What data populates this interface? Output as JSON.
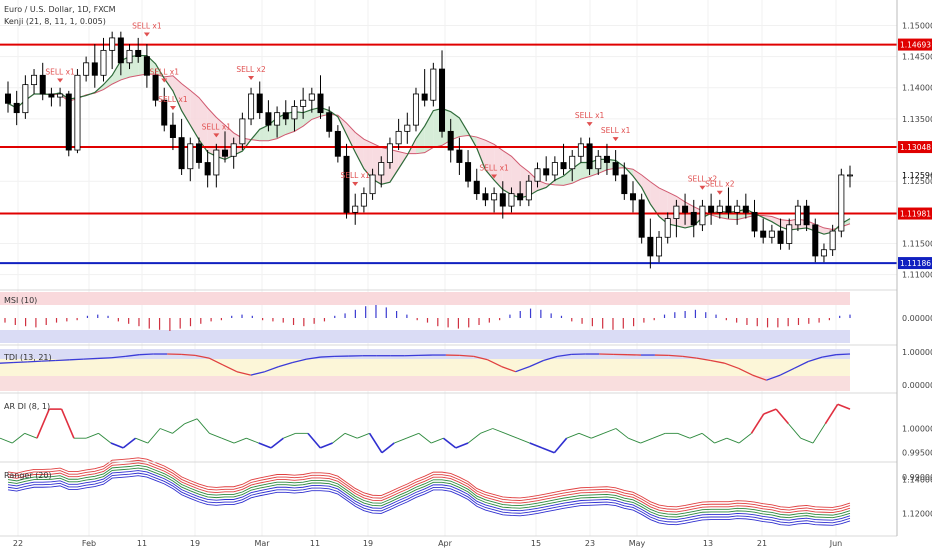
{
  "header": {
    "title": "Euro / U.S. Dollar, 1D, FXCM",
    "indicator": "Kenji (21, 8, 11, 1, 0.005)"
  },
  "panes": {
    "msi": {
      "title": "MSI (10)",
      "ticks": [
        "0.00000"
      ]
    },
    "tdi": {
      "title": "TDI (13, 21)",
      "ticks": [
        "1.00000",
        "0.00000"
      ]
    },
    "ardi": {
      "title": "AR DI (8, 1)",
      "ticks": [
        "1.00000",
        "0.99500",
        "0.99000"
      ]
    },
    "ranger": {
      "title": "Ranger (20)",
      "ticks": [
        "1.14000",
        "1.12000"
      ]
    }
  },
  "price_axis": {
    "ticks": [
      "1.15000",
      "1.14500",
      "1.14000",
      "1.13500",
      "1.12500",
      "1.11500",
      "1.11000"
    ]
  },
  "x_axis": {
    "labels": [
      "22",
      "Feb",
      "11",
      "19",
      "Mar",
      "11",
      "19",
      "Apr",
      "15",
      "23",
      "May",
      "13",
      "21",
      "Jun"
    ]
  },
  "levels": [
    {
      "value": "1.14693",
      "color": "#e00000"
    },
    {
      "value": "1.13048",
      "color": "#e00000"
    },
    {
      "value": "1.11981",
      "color": "#e00000"
    },
    {
      "value": "1.11186",
      "color": "#1020c0"
    }
  ],
  "last_price": {
    "value": "1.12596"
  },
  "sell_labels": [
    "SELL x1",
    "SELL x1",
    "SELL x1",
    "SELL x1",
    "SELL x2",
    "SELL x1",
    "SELL x1",
    "SELL x1",
    "SELL x1",
    "SELL x1",
    "SELL x2",
    "SELL x2"
  ],
  "chart_data": {
    "type": "candlestick",
    "title": "Euro / U.S. Dollar, 1D, FXCM",
    "ylim": [
      1.1085,
      1.1528
    ],
    "candles_ohlc": [
      [
        1.139,
        1.141,
        1.136,
        1.1375
      ],
      [
        1.1375,
        1.1395,
        1.134,
        1.136
      ],
      [
        1.136,
        1.142,
        1.135,
        1.1405
      ],
      [
        1.1405,
        1.143,
        1.139,
        1.142
      ],
      [
        1.142,
        1.144,
        1.138,
        1.139
      ],
      [
        1.139,
        1.14,
        1.137,
        1.1385
      ],
      [
        1.1385,
        1.14,
        1.137,
        1.139
      ],
      [
        1.139,
        1.1395,
        1.129,
        1.13
      ],
      [
        1.13,
        1.143,
        1.1295,
        1.142
      ],
      [
        1.142,
        1.145,
        1.141,
        1.144
      ],
      [
        1.144,
        1.147,
        1.14,
        1.142
      ],
      [
        1.142,
        1.148,
        1.141,
        1.146
      ],
      [
        1.146,
        1.149,
        1.143,
        1.148
      ],
      [
        1.148,
        1.149,
        1.142,
        1.144
      ],
      [
        1.144,
        1.147,
        1.143,
        1.146
      ],
      [
        1.146,
        1.148,
        1.144,
        1.145
      ],
      [
        1.145,
        1.147,
        1.14,
        1.142
      ],
      [
        1.142,
        1.143,
        1.137,
        1.138
      ],
      [
        1.138,
        1.14,
        1.133,
        1.134
      ],
      [
        1.134,
        1.136,
        1.13,
        1.132
      ],
      [
        1.132,
        1.135,
        1.126,
        1.127
      ],
      [
        1.127,
        1.132,
        1.125,
        1.131
      ],
      [
        1.131,
        1.132,
        1.127,
        1.128
      ],
      [
        1.128,
        1.13,
        1.124,
        1.126
      ],
      [
        1.126,
        1.131,
        1.124,
        1.13
      ],
      [
        1.13,
        1.133,
        1.128,
        1.129
      ],
      [
        1.129,
        1.132,
        1.127,
        1.131
      ],
      [
        1.131,
        1.136,
        1.13,
        1.135
      ],
      [
        1.135,
        1.14,
        1.134,
        1.139
      ],
      [
        1.139,
        1.141,
        1.135,
        1.136
      ],
      [
        1.136,
        1.138,
        1.133,
        1.134
      ],
      [
        1.134,
        1.137,
        1.132,
        1.136
      ],
      [
        1.136,
        1.138,
        1.134,
        1.135
      ],
      [
        1.135,
        1.138,
        1.133,
        1.137
      ],
      [
        1.137,
        1.14,
        1.135,
        1.138
      ],
      [
        1.138,
        1.14,
        1.136,
        1.139
      ],
      [
        1.139,
        1.142,
        1.135,
        1.136
      ],
      [
        1.136,
        1.137,
        1.132,
        1.133
      ],
      [
        1.133,
        1.134,
        1.128,
        1.129
      ],
      [
        1.129,
        1.131,
        1.119,
        1.12
      ],
      [
        1.12,
        1.123,
        1.118,
        1.121
      ],
      [
        1.121,
        1.124,
        1.12,
        1.123
      ],
      [
        1.123,
        1.127,
        1.122,
        1.126
      ],
      [
        1.126,
        1.129,
        1.124,
        1.128
      ],
      [
        1.128,
        1.132,
        1.127,
        1.131
      ],
      [
        1.131,
        1.135,
        1.13,
        1.133
      ],
      [
        1.133,
        1.136,
        1.131,
        1.134
      ],
      [
        1.134,
        1.14,
        1.133,
        1.139
      ],
      [
        1.139,
        1.143,
        1.137,
        1.138
      ],
      [
        1.138,
        1.144,
        1.137,
        1.143
      ],
      [
        1.143,
        1.146,
        1.132,
        1.133
      ],
      [
        1.133,
        1.135,
        1.128,
        1.13
      ],
      [
        1.13,
        1.132,
        1.126,
        1.128
      ],
      [
        1.128,
        1.13,
        1.124,
        1.125
      ],
      [
        1.125,
        1.127,
        1.122,
        1.123
      ],
      [
        1.123,
        1.124,
        1.121,
        1.122
      ],
      [
        1.122,
        1.124,
        1.12,
        1.123
      ],
      [
        1.123,
        1.125,
        1.119,
        1.121
      ],
      [
        1.121,
        1.124,
        1.12,
        1.123
      ],
      [
        1.123,
        1.125,
        1.121,
        1.122
      ],
      [
        1.122,
        1.126,
        1.121,
        1.125
      ],
      [
        1.125,
        1.128,
        1.124,
        1.127
      ],
      [
        1.127,
        1.129,
        1.125,
        1.126
      ],
      [
        1.126,
        1.129,
        1.125,
        1.128
      ],
      [
        1.128,
        1.131,
        1.126,
        1.127
      ],
      [
        1.127,
        1.13,
        1.125,
        1.129
      ],
      [
        1.129,
        1.132,
        1.128,
        1.131
      ],
      [
        1.131,
        1.132,
        1.126,
        1.127
      ],
      [
        1.127,
        1.13,
        1.126,
        1.129
      ],
      [
        1.129,
        1.131,
        1.126,
        1.128
      ],
      [
        1.128,
        1.13,
        1.125,
        1.126
      ],
      [
        1.126,
        1.128,
        1.122,
        1.123
      ],
      [
        1.123,
        1.125,
        1.12,
        1.122
      ],
      [
        1.122,
        1.123,
        1.115,
        1.116
      ],
      [
        1.116,
        1.119,
        1.111,
        1.113
      ],
      [
        1.113,
        1.117,
        1.112,
        1.116
      ],
      [
        1.116,
        1.12,
        1.115,
        1.119
      ],
      [
        1.119,
        1.122,
        1.116,
        1.121
      ],
      [
        1.121,
        1.123,
        1.118,
        1.12
      ],
      [
        1.12,
        1.122,
        1.116,
        1.118
      ],
      [
        1.118,
        1.122,
        1.117,
        1.121
      ],
      [
        1.121,
        1.123,
        1.118,
        1.12
      ],
      [
        1.12,
        1.122,
        1.119,
        1.121
      ],
      [
        1.121,
        1.124,
        1.119,
        1.12
      ],
      [
        1.12,
        1.122,
        1.118,
        1.121
      ],
      [
        1.121,
        1.123,
        1.119,
        1.12
      ],
      [
        1.12,
        1.122,
        1.116,
        1.117
      ],
      [
        1.117,
        1.119,
        1.115,
        1.116
      ],
      [
        1.116,
        1.118,
        1.115,
        1.117
      ],
      [
        1.117,
        1.119,
        1.114,
        1.115
      ],
      [
        1.115,
        1.119,
        1.114,
        1.118
      ],
      [
        1.118,
        1.122,
        1.117,
        1.121
      ],
      [
        1.121,
        1.122,
        1.117,
        1.118
      ],
      [
        1.118,
        1.119,
        1.112,
        1.113
      ],
      [
        1.113,
        1.115,
        1.112,
        1.114
      ],
      [
        1.114,
        1.118,
        1.113,
        1.117
      ],
      [
        1.117,
        1.127,
        1.116,
        1.126
      ],
      [
        1.126,
        1.1275,
        1.124,
        1.126
      ]
    ],
    "msi_values": [
      -0.3,
      -0.5,
      -0.6,
      -0.7,
      -0.5,
      -0.3,
      -0.2,
      -0.1,
      0.1,
      0.2,
      0.1,
      -0.2,
      -0.4,
      -0.6,
      -0.8,
      -0.9,
      -1.0,
      -0.8,
      -0.6,
      -0.4,
      -0.2,
      -0.1,
      0.1,
      0.2,
      0.1,
      -0.1,
      -0.2,
      -0.3,
      -0.5,
      -0.6,
      -0.4,
      -0.2,
      0.1,
      0.3,
      0.6,
      0.9,
      1.0,
      0.8,
      0.5,
      0.2,
      -0.1,
      -0.3,
      -0.6,
      -0.7,
      -0.8,
      -0.7,
      -0.5,
      -0.3,
      -0.1,
      0.2,
      0.5,
      0.7,
      0.6,
      0.3,
      0.1,
      -0.2,
      -0.4,
      -0.6,
      -0.8,
      -0.9,
      -0.8,
      -0.6,
      -0.3,
      -0.1,
      0.2,
      0.4,
      0.5,
      0.6,
      0.4,
      0.2,
      -0.1,
      -0.3,
      -0.5,
      -0.6,
      -0.7,
      -0.7,
      -0.6,
      -0.5,
      -0.4,
      -0.3,
      -0.1,
      0.1,
      0.2
    ],
    "tdi_values": [
      0.7,
      0.72,
      0.74,
      0.76,
      0.78,
      0.8,
      0.82,
      0.84,
      0.86,
      0.9,
      0.95,
      0.97,
      0.97,
      0.96,
      0.93,
      0.85,
      0.65,
      0.45,
      0.35,
      0.45,
      0.6,
      0.72,
      0.82,
      0.88,
      0.9,
      0.91,
      0.92,
      0.92,
      0.92,
      0.92,
      0.93,
      0.94,
      0.94,
      0.93,
      0.9,
      0.8,
      0.6,
      0.45,
      0.6,
      0.78,
      0.9,
      0.96,
      0.97,
      0.97,
      0.96,
      0.95,
      0.94,
      0.94,
      0.93,
      0.9,
      0.85,
      0.78,
      0.7,
      0.55,
      0.35,
      0.2,
      0.35,
      0.55,
      0.75,
      0.88,
      0.95,
      0.97
    ],
    "ardi_values": [
      0.998,
      0.997,
      0.999,
      0.998,
      1.004,
      1.004,
      0.998,
      0.998,
      0.999,
      0.997,
      0.996,
      0.998,
      0.997,
      1.0,
      0.999,
      1.001,
      1.002,
      0.999,
      0.998,
      0.997,
      0.998,
      0.997,
      0.996,
      0.998,
      0.999,
      0.999,
      0.996,
      0.997,
      0.999,
      0.998,
      0.999,
      0.995,
      0.997,
      0.998,
      0.999,
      0.997,
      0.998,
      0.996,
      0.997,
      0.999,
      1.0,
      0.999,
      0.998,
      0.997,
      0.996,
      0.995,
      0.998,
      0.999,
      0.998,
      0.999,
      1.0,
      0.998,
      0.997,
      0.998,
      0.999,
      0.999,
      0.998,
      0.999,
      0.997,
      0.998,
      0.997,
      0.999,
      1.003,
      1.004,
      1.001,
      0.998,
      0.997,
      1.001,
      1.005,
      1.004
    ]
  }
}
